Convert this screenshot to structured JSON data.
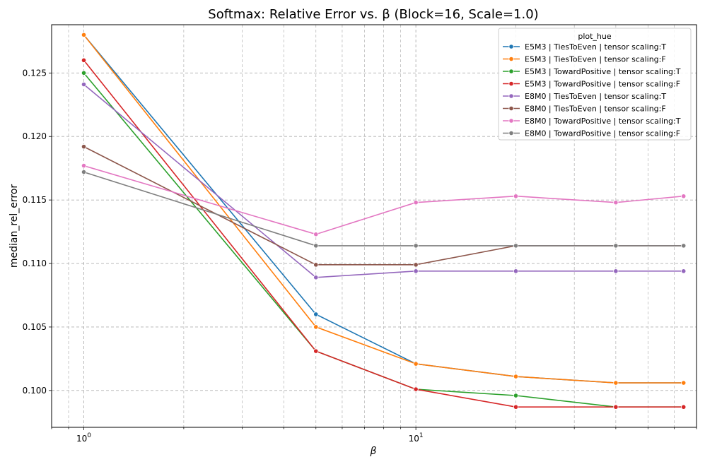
{
  "chart_data": {
    "type": "line",
    "title": "Softmax: Relative Error vs. β (Block=16, Scale=1.0)",
    "xlabel": "β",
    "ylabel": "median_rel_error",
    "xscale": "log",
    "xlim": [
      0.8,
      70
    ],
    "ylim": [
      0.0971,
      0.1288
    ],
    "grid": true,
    "grid_style": "dashed",
    "x_ticks_major": [
      1,
      10
    ],
    "x_tick_labels": [
      "10^0",
      "10^1"
    ],
    "y_ticks": [
      0.1,
      0.105,
      0.11,
      0.115,
      0.12,
      0.125
    ],
    "y_tick_labels": [
      "0.100",
      "0.105",
      "0.110",
      "0.115",
      "0.120",
      "0.125"
    ],
    "x": [
      1,
      5,
      10,
      20,
      40,
      64
    ],
    "legend": {
      "title": "plot_hue",
      "placement": "top-right"
    },
    "series": [
      {
        "name": "E5M3 | TiesToEven | tensor scaling:T",
        "color": "#1f77b4",
        "values": [
          0.128,
          0.106,
          0.1021,
          0.1011,
          0.1006,
          0.1006
        ]
      },
      {
        "name": "E5M3 | TiesToEven | tensor scaling:F",
        "color": "#ff7f0e",
        "values": [
          0.128,
          0.105,
          0.1021,
          0.1011,
          0.1006,
          0.1006
        ]
      },
      {
        "name": "E5M3 | TowardPositive | tensor scaling:T",
        "color": "#2ca02c",
        "values": [
          0.125,
          0.1031,
          0.1001,
          0.0996,
          0.0987,
          0.0987
        ]
      },
      {
        "name": "E5M3 | TowardPositive | tensor scaling:F",
        "color": "#d62728",
        "values": [
          0.126,
          0.1031,
          0.1001,
          0.0987,
          0.0987,
          0.0987
        ]
      },
      {
        "name": "E8M0 | TiesToEven | tensor scaling:T",
        "color": "#9467bd",
        "values": [
          0.1241,
          0.1089,
          0.1094,
          0.1094,
          0.1094,
          0.1094
        ]
      },
      {
        "name": "E8M0 | TiesToEven | tensor scaling:F",
        "color": "#8c564b",
        "values": [
          0.1192,
          0.1099,
          0.1099,
          0.1114,
          0.1114,
          0.1114
        ]
      },
      {
        "name": "E8M0 | TowardPositive | tensor scaling:T",
        "color": "#e377c2",
        "values": [
          0.1177,
          0.1123,
          0.1148,
          0.1153,
          0.1148,
          0.1153
        ]
      },
      {
        "name": "E8M0 | TowardPositive | tensor scaling:F",
        "color": "#7f7f7f",
        "values": [
          0.1172,
          0.1114,
          0.1114,
          0.1114,
          0.1114,
          0.1114
        ]
      }
    ]
  }
}
